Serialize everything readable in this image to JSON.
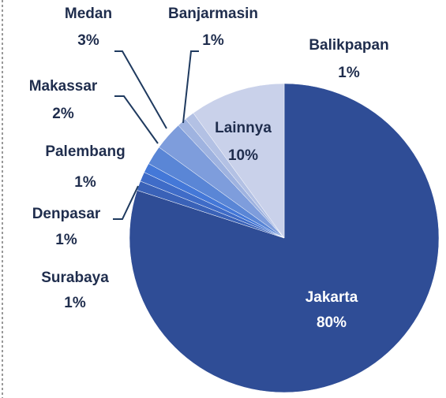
{
  "chart_data": {
    "type": "pie",
    "categories": [
      "Jakarta",
      "Surabaya",
      "Denpasar",
      "Palembang",
      "Makassar",
      "Medan",
      "Banjarmasin",
      "Balikpapan",
      "Lainnya"
    ],
    "values": [
      80,
      1,
      1,
      1,
      2,
      3,
      1,
      1,
      10
    ],
    "value_labels": [
      "80%",
      "1%",
      "1%",
      "1%",
      "2%",
      "3%",
      "1%",
      "1%",
      "10%"
    ],
    "colors": [
      "#2f4d96",
      "#3a62b8",
      "#3f6cc8",
      "#4478d8",
      "#5a86d6",
      "#7e9ddc",
      "#9fb3e0",
      "#b3c1e4",
      "#c9d1ea"
    ]
  }
}
